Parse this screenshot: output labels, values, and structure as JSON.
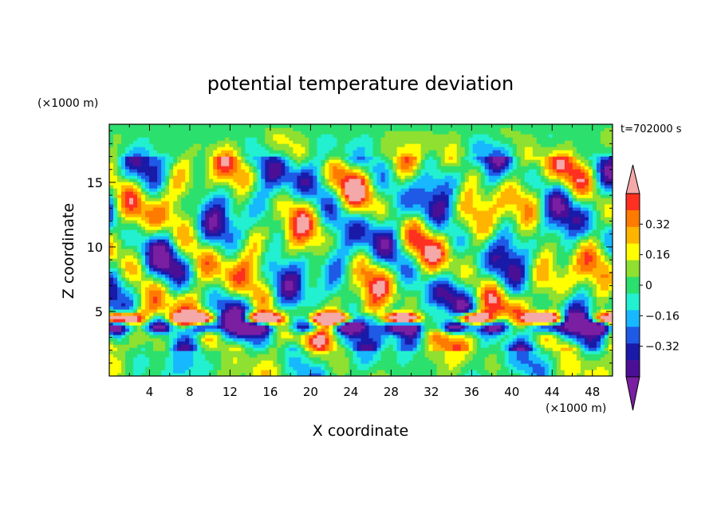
{
  "chart_data": {
    "type": "heatmap",
    "title": "potential temperature deviation",
    "xlabel": "X coordinate",
    "ylabel": "Z coordinate",
    "x_unit": "(×1000 m)",
    "y_unit": "(×1000 m)",
    "time_label": "t=702000 s",
    "xlim": [
      0,
      50
    ],
    "ylim": [
      0,
      19.5
    ],
    "x_ticks": [
      "4",
      "8",
      "12",
      "16",
      "20",
      "24",
      "28",
      "32",
      "36",
      "40",
      "44",
      "48"
    ],
    "y_ticks": [
      "5",
      "10",
      "15"
    ],
    "colorbar": {
      "levels": [
        -0.48,
        -0.4,
        -0.32,
        -0.24,
        -0.16,
        -0.08,
        0,
        0.08,
        0.16,
        0.24,
        0.32,
        0.4,
        0.48
      ],
      "labels": [
        "0.32",
        "0.16",
        "0",
        "−0.16",
        "−0.32"
      ],
      "colors": [
        "#7a1fa2",
        "#4b0f96",
        "#1a1aa8",
        "#1e5ae6",
        "#17b8ff",
        "#22f0d0",
        "#2ce06e",
        "#8fe030",
        "#ffff00",
        "#ffb400",
        "#ff7a00",
        "#ff3020",
        "#f4a8a8"
      ],
      "extend": "both"
    },
    "description_fields": {
      "stable_layer_height": 4.5,
      "upper_uniform_region": "z > 17"
    }
  }
}
